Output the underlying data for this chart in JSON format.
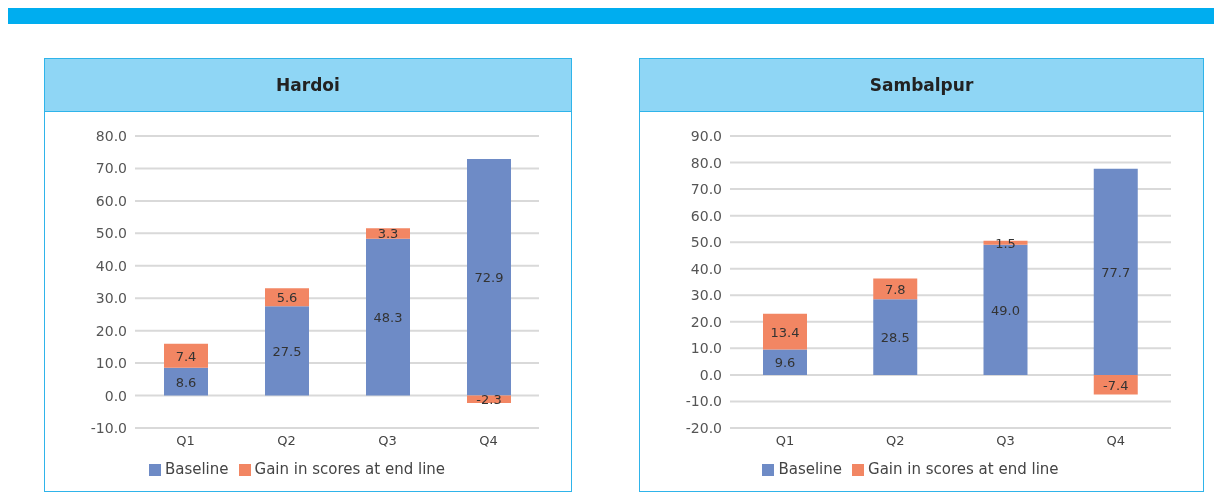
{
  "chart_data": [
    {
      "type": "bar",
      "title": "Hardoi",
      "categories": [
        "Q1",
        "Q2",
        "Q3",
        "Q4"
      ],
      "stacked": true,
      "legend": "bottom",
      "grid": "y",
      "ylim": [
        -10,
        80
      ],
      "yticks": [
        {
          "value": -10,
          "label": "-10.0"
        },
        {
          "value": 0,
          "label": "0.0"
        },
        {
          "value": 10,
          "label": "10.0"
        },
        {
          "value": 20,
          "label": "20.0"
        },
        {
          "value": 30,
          "label": "30.0"
        },
        {
          "value": 40,
          "label": "40.0"
        },
        {
          "value": 50,
          "label": "50.0"
        },
        {
          "value": 60,
          "label": "60.0"
        },
        {
          "value": 70,
          "label": "70.0"
        },
        {
          "value": 80,
          "label": "80.0"
        }
      ],
      "series": [
        {
          "name": "Baseline",
          "color": "#6e8bc6",
          "values": [
            8.6,
            27.5,
            48.3,
            72.9
          ],
          "value_labels": [
            "8.6",
            "27.5",
            "48.3",
            "72.9"
          ]
        },
        {
          "name": "Gain in scores at end line",
          "color": "#f28663",
          "values": [
            7.4,
            5.6,
            3.3,
            -2.3
          ],
          "value_labels": [
            "7.4",
            "5.6",
            "3.3",
            "-2.3"
          ]
        }
      ]
    },
    {
      "type": "bar",
      "title": "Sambalpur",
      "categories": [
        "Q1",
        "Q2",
        "Q3",
        "Q4"
      ],
      "stacked": true,
      "legend": "bottom",
      "grid": "y",
      "ylim": [
        -20,
        90
      ],
      "yticks": [
        {
          "value": -20,
          "label": "-20.0"
        },
        {
          "value": -10,
          "label": "-10.0"
        },
        {
          "value": 0,
          "label": "0.0"
        },
        {
          "value": 10,
          "label": "10.0"
        },
        {
          "value": 20,
          "label": "20.0"
        },
        {
          "value": 30,
          "label": "30.0"
        },
        {
          "value": 40,
          "label": "40.0"
        },
        {
          "value": 50,
          "label": "50.0"
        },
        {
          "value": 60,
          "label": "60.0"
        },
        {
          "value": 70,
          "label": "70.0"
        },
        {
          "value": 80,
          "label": "80.0"
        },
        {
          "value": 90,
          "label": "90.0"
        }
      ],
      "series": [
        {
          "name": "Baseline",
          "color": "#6e8bc6",
          "values": [
            9.6,
            28.5,
            49.0,
            77.7
          ],
          "value_labels": [
            "9.6",
            "28.5",
            "49.0",
            "77.7"
          ]
        },
        {
          "name": "Gain in scores at end line",
          "color": "#f28663",
          "values": [
            13.4,
            7.8,
            1.5,
            -7.4
          ],
          "value_labels": [
            "13.4",
            "7.8",
            "1.5",
            "-7.4"
          ]
        }
      ]
    }
  ]
}
